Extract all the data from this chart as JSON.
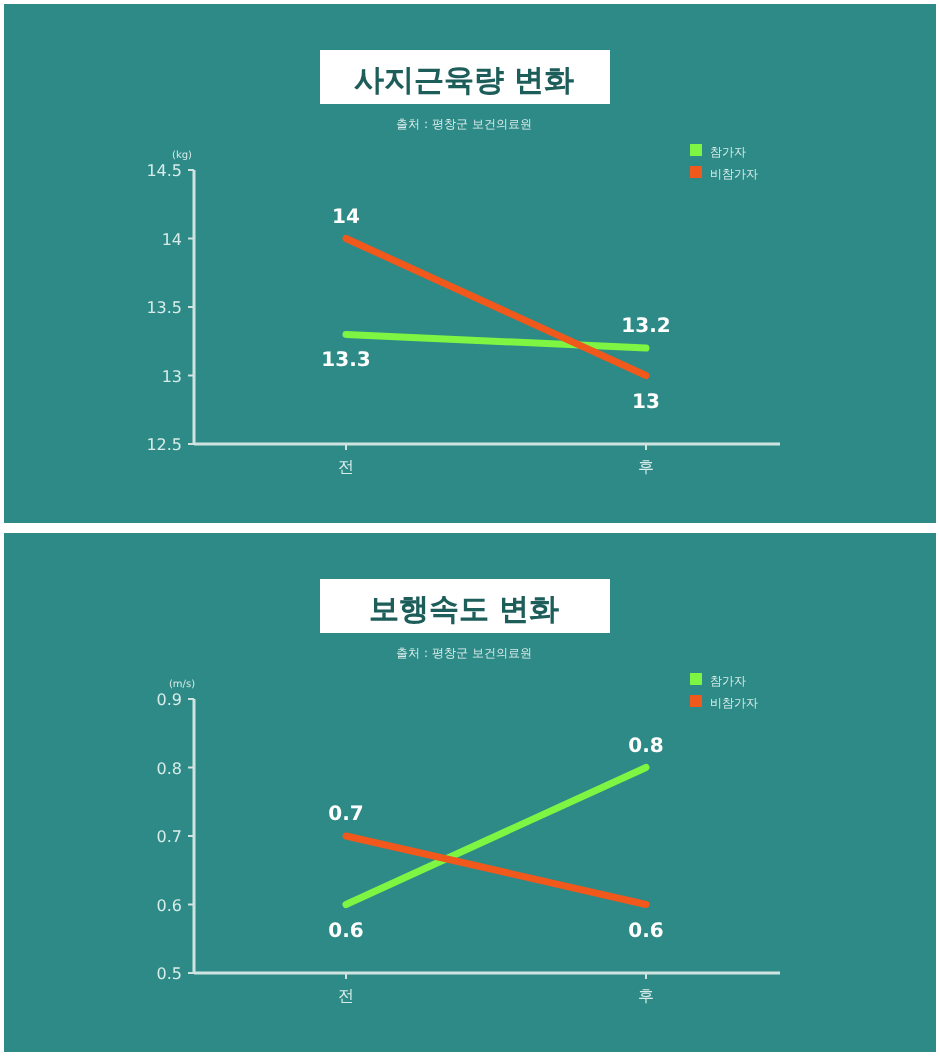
{
  "chart_data": [
    {
      "type": "line",
      "title": "사지근육량 변화",
      "subtitle": "출처 : 평창군 보건의료원",
      "ylabel": "(kg)",
      "categories": [
        "전",
        "후"
      ],
      "ylim": [
        12.5,
        14.5
      ],
      "yticks": [
        12.5,
        13,
        13.5,
        14,
        14.5
      ],
      "data_labels": true,
      "legend": "top right",
      "grid": false,
      "series": [
        {
          "name": "참가자",
          "color": "#7ef542",
          "values": [
            13.3,
            13.2
          ]
        },
        {
          "name": "비참가자",
          "color": "#f0581c",
          "values": [
            14,
            13
          ]
        }
      ]
    },
    {
      "type": "line",
      "title": "보행속도 변화",
      "subtitle": "출처 : 평창군 보건의료원",
      "ylabel": "(m/s)",
      "categories": [
        "전",
        "후"
      ],
      "ylim": [
        0.5,
        0.9
      ],
      "yticks": [
        0.5,
        0.6,
        0.7,
        0.8,
        0.9
      ],
      "data_labels": true,
      "legend": "top right",
      "grid": false,
      "series": [
        {
          "name": "참가자",
          "color": "#7ef542",
          "values": [
            0.6,
            0.8
          ]
        },
        {
          "name": "비참가자",
          "color": "#f0581c",
          "values": [
            0.7,
            0.6
          ]
        }
      ]
    }
  ]
}
